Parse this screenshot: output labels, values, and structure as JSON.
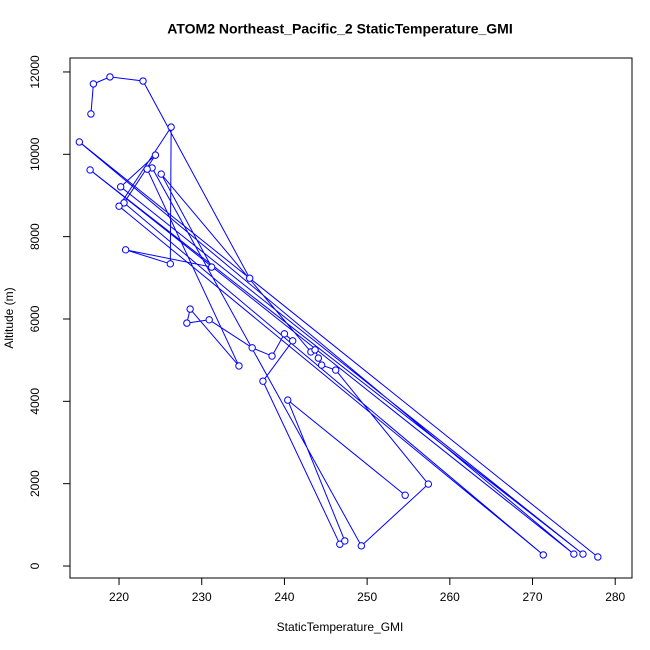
{
  "chart_data": {
    "type": "line",
    "title": "ATOM2 Northeast_Pacific_2 StaticTemperature_GMI",
    "x_label": "StaticTemperature_GMI",
    "y_label": "Altitude (m)",
    "color": "#0000ff",
    "markers": true,
    "x": [
      216.6,
      216.9,
      218.9,
      222.9,
      235.8,
      277.9,
      215.2,
      275.0,
      216.5,
      276.1,
      220.2,
      224.4,
      220.6,
      271.3,
      220.0,
      226.3,
      226.2,
      220.8,
      231.2,
      225.1,
      243.2,
      243.7,
      244.1,
      244.5,
      246.2,
      257.4,
      249.3,
      224.0,
      223.4,
      234.5,
      228.6,
      228.2,
      230.9,
      236.1,
      238.5,
      240.0,
      241.0,
      237.4,
      246.7,
      247.3,
      240.4,
      254.6
    ],
    "y": [
      10980,
      11710,
      11880,
      11780,
      6990,
      220,
      10300,
      290,
      9620,
      290,
      9210,
      9980,
      8820,
      270,
      8740,
      10660,
      7340,
      7680,
      7260,
      9520,
      5200,
      5250,
      5050,
      4880,
      4760,
      1990,
      490,
      9670,
      9640,
      4860,
      6240,
      5900,
      5980,
      5300,
      5100,
      5640,
      5470,
      4490,
      530,
      610,
      4030,
      1720
    ],
    "xlim": [
      214.07,
      282.03
    ],
    "ylim": [
      -291,
      12339
    ],
    "xticks": [
      220,
      230,
      240,
      250,
      260,
      270,
      280
    ],
    "yticks": [
      0,
      2000,
      4000,
      6000,
      8000,
      10000,
      12000
    ]
  }
}
